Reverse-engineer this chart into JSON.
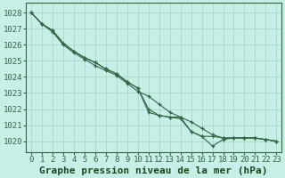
{
  "bg_color": "#c8eee8",
  "grid_color": "#a8d8cc",
  "line_color": "#2d6a3f",
  "marker_color": "#2d6a3f",
  "title": "Graphe pression niveau de la mer (hPa)",
  "title_color": "#1a4a1a",
  "ylabel_values": [
    1020,
    1021,
    1022,
    1023,
    1024,
    1025,
    1026,
    1027,
    1028
  ],
  "ylim": [
    1019.3,
    1028.6
  ],
  "xlim": [
    -0.5,
    23.5
  ],
  "xtick_labels": [
    "0",
    "1",
    "2",
    "3",
    "4",
    "5",
    "6",
    "7",
    "8",
    "9",
    "10",
    "11",
    "12",
    "13",
    "14",
    "15",
    "16",
    "17",
    "18",
    "19",
    "20",
    "21",
    "22",
    "23"
  ],
  "line1": [
    1028.0,
    1027.3,
    1026.8,
    1026.0,
    1025.5,
    1025.1,
    1024.7,
    1024.4,
    1024.1,
    1023.6,
    1023.1,
    1022.8,
    1022.3,
    1021.8,
    1021.5,
    1021.2,
    1020.8,
    1020.4,
    1020.2,
    1020.2,
    1020.2,
    1020.2,
    1020.1,
    1020.0
  ],
  "line2": [
    1028.0,
    1027.3,
    1026.9,
    1026.1,
    1025.6,
    1025.2,
    1024.9,
    1024.5,
    1024.2,
    1023.7,
    1023.3,
    1022.0,
    1021.6,
    1021.5,
    1021.5,
    1020.6,
    1020.3,
    1020.3,
    1020.2,
    1020.2,
    1020.2,
    1020.2,
    1020.1,
    1020.0
  ],
  "line3": [
    1028.0,
    1027.3,
    1026.9,
    1026.1,
    1025.6,
    1025.2,
    1024.9,
    1024.5,
    1024.2,
    1023.7,
    1023.3,
    1021.8,
    1021.6,
    1021.5,
    1021.4,
    1020.6,
    1020.3,
    1019.7,
    1020.1,
    1020.2,
    1020.2,
    1020.2,
    1020.1,
    1020.0
  ],
  "xlabel_fontsize": 6.5,
  "ylabel_fontsize": 6.5,
  "title_fontsize": 8.0
}
